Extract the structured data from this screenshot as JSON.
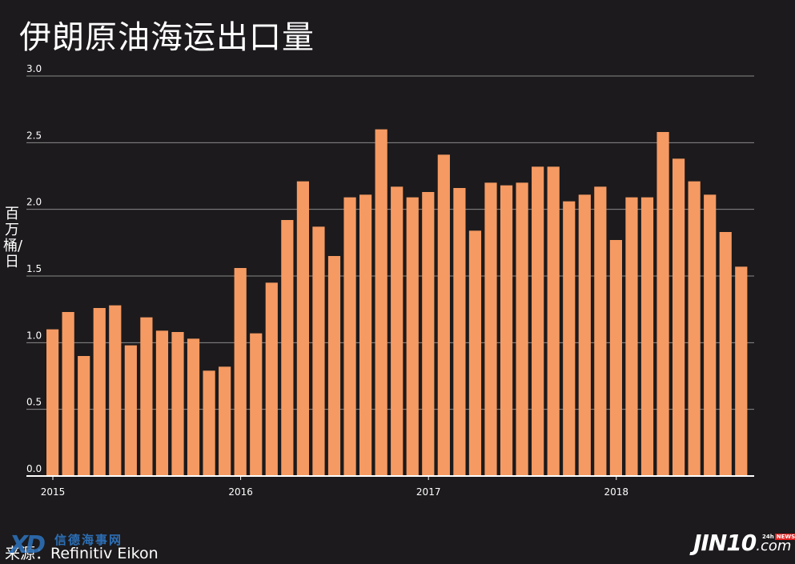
{
  "title": "伊朗原油海运出口量",
  "source": "来源：Refinitiv Eikon",
  "watermark_left": {
    "mark": "XD",
    "text": "信德海事网"
  },
  "logo": {
    "main": "JIN10",
    "domain": ".com",
    "badge_prefix": "24h",
    "badge_news": "NEWS"
  },
  "colors": {
    "background": "#1c1a1c",
    "bar": "#f59a62",
    "grid": "#8a8a8a",
    "text": "#ffffff"
  },
  "chart_data": {
    "type": "bar",
    "title": "伊朗原油海运出口量",
    "ylabel": "百万桶/日",
    "xlabel": "",
    "ylim": [
      0,
      3.0
    ],
    "y_ticks": [
      "0.0",
      "0.5",
      "1.0",
      "1.5",
      "2.0",
      "2.5",
      "3.0"
    ],
    "x_ticks": [
      "2015",
      "2016",
      "2017",
      "2018"
    ],
    "grid": true,
    "categories": [
      "2015-01",
      "2015-02",
      "2015-03",
      "2015-04",
      "2015-05",
      "2015-06",
      "2015-07",
      "2015-08",
      "2015-09",
      "2015-10",
      "2015-11",
      "2015-12",
      "2016-01",
      "2016-02",
      "2016-03",
      "2016-04",
      "2016-05",
      "2016-06",
      "2016-07",
      "2016-08",
      "2016-09",
      "2016-10",
      "2016-11",
      "2016-12",
      "2017-01",
      "2017-02",
      "2017-03",
      "2017-04",
      "2017-05",
      "2017-06",
      "2017-07",
      "2017-08",
      "2017-09",
      "2017-10",
      "2017-11",
      "2017-12",
      "2018-01",
      "2018-02",
      "2018-03",
      "2018-04",
      "2018-05",
      "2018-06",
      "2018-07",
      "2018-08",
      "2018-09"
    ],
    "values": [
      1.1,
      1.23,
      0.9,
      1.26,
      1.28,
      0.98,
      1.19,
      1.09,
      1.08,
      1.03,
      0.79,
      0.82,
      1.56,
      1.07,
      1.45,
      1.92,
      2.21,
      1.87,
      1.65,
      2.09,
      2.11,
      2.6,
      2.17,
      2.09,
      2.13,
      2.41,
      2.16,
      1.84,
      2.2,
      2.18,
      2.2,
      2.32,
      2.32,
      2.06,
      2.11,
      2.17,
      1.77,
      2.09,
      2.09,
      2.58,
      2.38,
      2.21,
      2.11,
      1.83,
      1.57
    ]
  }
}
